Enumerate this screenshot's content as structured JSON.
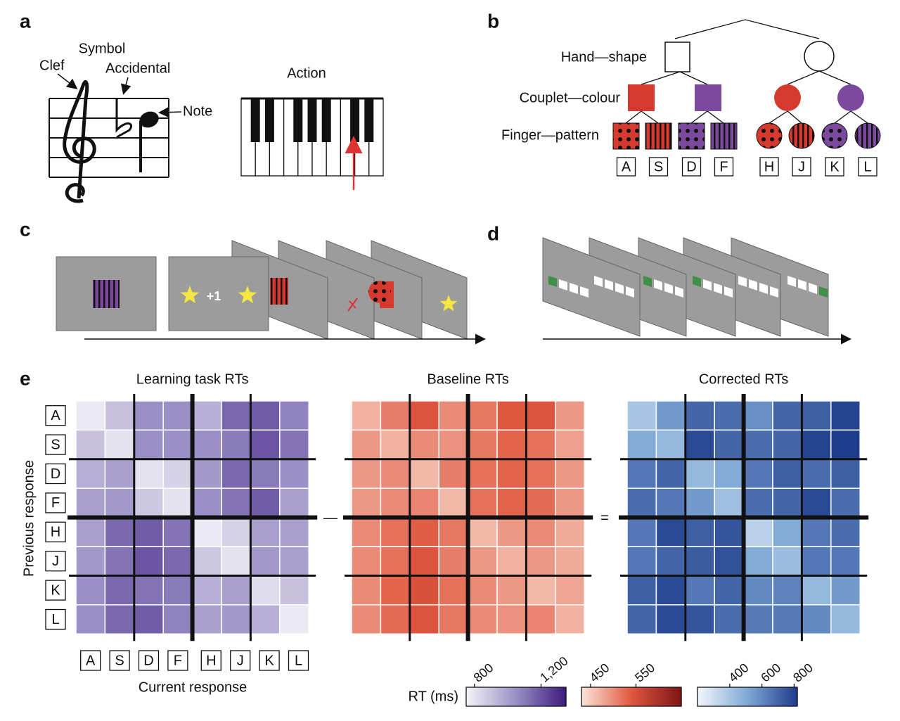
{
  "panel_labels": [
    "a",
    "b",
    "c",
    "d",
    "e"
  ],
  "panel_a": {
    "symbol": "Symbol",
    "clef": "Clef",
    "accidental": "Accidental",
    "note": "Note",
    "action": "Action"
  },
  "panel_b": {
    "levels": [
      "Hand—shape",
      "Couplet—colour",
      "Finger—pattern"
    ],
    "keys": [
      "A",
      "S",
      "D",
      "F",
      "H",
      "J",
      "K",
      "L"
    ],
    "colors": [
      "#d63a2f",
      "#7b4a9e"
    ]
  },
  "panel_c": {
    "feedback": "+1"
  },
  "panel_e": {
    "keys": [
      "A",
      "S",
      "D",
      "F",
      "H",
      "J",
      "K",
      "L"
    ],
    "y_label": "Previous response",
    "x_label": "Current response",
    "operators": [
      "—",
      "="
    ],
    "colorbar_label": "RT (ms)",
    "heatmaps": [
      {
        "name": "Learning task RTs",
        "clim": [
          750,
          1350
        ],
        "ticks": [
          800,
          {
            "value": 1200,
            "label": "1,200"
          }
        ],
        "colors": [
          "#f4f3f8",
          "#9a8fc6",
          "#3c1a7e"
        ],
        "values": [
          [
            780,
            900,
            1050,
            1050,
            950,
            1150,
            1180,
            1080
          ],
          [
            900,
            800,
            1050,
            1050,
            1050,
            1100,
            1200,
            1120
          ],
          [
            960,
            1000,
            800,
            850,
            1020,
            1150,
            1100,
            1050
          ],
          [
            1000,
            1020,
            880,
            800,
            1050,
            1120,
            1180,
            1000
          ],
          [
            1000,
            1150,
            1180,
            1120,
            780,
            850,
            1000,
            1000
          ],
          [
            1020,
            1120,
            1200,
            1150,
            880,
            800,
            1020,
            1000
          ],
          [
            1050,
            1150,
            1120,
            1100,
            950,
            1000,
            820,
            900
          ],
          [
            1050,
            1150,
            1180,
            1080,
            1000,
            1020,
            950,
            780
          ]
        ]
      },
      {
        "name": "Baseline RTs",
        "clim": [
          430,
          650
        ],
        "ticks": [
          450,
          550
        ],
        "colors": [
          "#fbe6da",
          "#e0573f",
          "#7e1515"
        ],
        "values": [
          [
            470,
            510,
            545,
            500,
            515,
            540,
            545,
            490
          ],
          [
            490,
            470,
            500,
            495,
            515,
            530,
            520,
            485
          ],
          [
            490,
            500,
            465,
            510,
            520,
            530,
            520,
            490
          ],
          [
            490,
            500,
            505,
            465,
            520,
            530,
            525,
            490
          ],
          [
            500,
            520,
            535,
            515,
            465,
            490,
            500,
            475
          ],
          [
            500,
            520,
            545,
            510,
            490,
            470,
            490,
            475
          ],
          [
            500,
            530,
            550,
            520,
            500,
            490,
            465,
            480
          ],
          [
            500,
            525,
            545,
            515,
            500,
            495,
            505,
            470
          ]
        ]
      },
      {
        "name": "Corrected RTs",
        "clim": [
          200,
          820
        ],
        "ticks": [
          400,
          600,
          800
        ],
        "colors": [
          "#f3f6fc",
          "#7fa9d6",
          "#1e3c8c"
        ],
        "values": [
          [
            400,
            550,
            700,
            680,
            580,
            700,
            720,
            800
          ],
          [
            500,
            450,
            780,
            700,
            680,
            700,
            800,
            850
          ],
          [
            650,
            700,
            450,
            500,
            650,
            720,
            680,
            720
          ],
          [
            680,
            650,
            550,
            420,
            680,
            700,
            780,
            680
          ],
          [
            650,
            780,
            720,
            750,
            350,
            500,
            650,
            680
          ],
          [
            650,
            700,
            730,
            760,
            500,
            430,
            650,
            650
          ],
          [
            720,
            780,
            650,
            700,
            600,
            620,
            450,
            550
          ],
          [
            700,
            780,
            750,
            680,
            640,
            640,
            600,
            450
          ]
        ]
      }
    ]
  }
}
